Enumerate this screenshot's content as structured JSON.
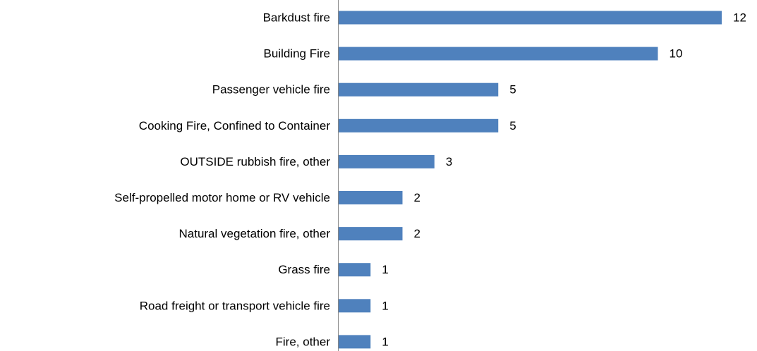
{
  "chart_data": {
    "type": "bar",
    "orientation": "horizontal",
    "categories": [
      "Barkdust fire",
      "Building Fire",
      "Passenger vehicle fire",
      "Cooking Fire, Confined to Container",
      "OUTSIDE rubbish fire, other",
      "Self-propelled motor home or RV vehicle",
      "Natural vegetation fire, other",
      "Grass fire",
      "Road freight or transport vehicle fire",
      "Fire, other"
    ],
    "values": [
      12,
      10,
      5,
      5,
      3,
      2,
      2,
      1,
      1,
      1
    ],
    "color": "#4f81bd",
    "data_labels": true
  }
}
